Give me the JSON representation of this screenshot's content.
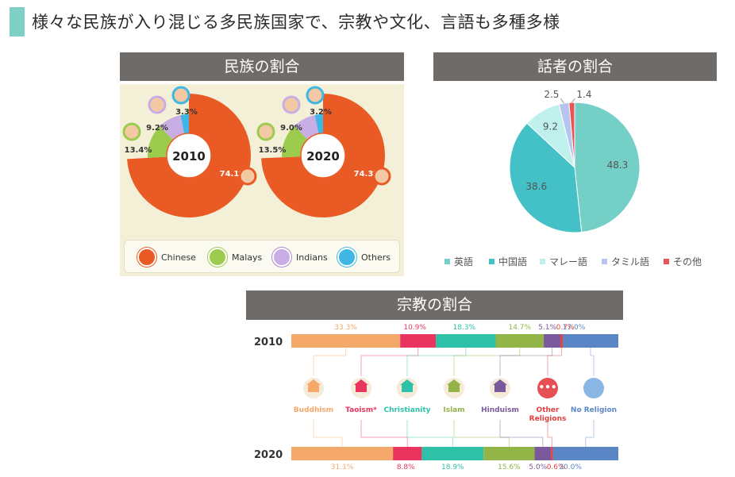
{
  "page": {
    "title": "様々な民族が入り混じる多民族国家で、宗教や文化、言語も多種多様"
  },
  "colors": {
    "accent": "#7ecfc6",
    "header_bg": "#6f6b69",
    "chinese": "#ea5a24",
    "malays": "#9ccb4e",
    "indians": "#c9aee6",
    "others": "#3fb7e4"
  },
  "ethnic": {
    "header": "民族の割合",
    "legend": [
      {
        "label": "Chinese",
        "color": "#ea5a24"
      },
      {
        "label": "Malays",
        "color": "#9ccb4e"
      },
      {
        "label": "Indians",
        "color": "#c9aee6"
      },
      {
        "label": "Others",
        "color": "#3fb7e4"
      }
    ]
  },
  "speakers": {
    "header": "話者の割合"
  },
  "religion": {
    "header": "宗教の割合",
    "icons": [
      "temple-icon",
      "pagoda-icon",
      "church-icon",
      "mosque-icon",
      "hindu-temple-icon",
      "more-icon",
      "none-icon"
    ]
  },
  "chart_data": [
    {
      "type": "pie",
      "title": "民族の割合",
      "center_label": "2010",
      "categories": [
        "Chinese",
        "Malays",
        "Indians",
        "Others"
      ],
      "values": [
        74.1,
        13.4,
        9.2,
        3.3
      ],
      "labels": [
        "74.1%",
        "13.4%",
        "9.2%",
        "3.3%"
      ],
      "colors": [
        "#ea5a24",
        "#9ccb4e",
        "#c9aee6",
        "#3fb7e4"
      ]
    },
    {
      "type": "pie",
      "title": "民族の割合",
      "center_label": "2020",
      "categories": [
        "Chinese",
        "Malays",
        "Indians",
        "Others"
      ],
      "values": [
        74.3,
        13.5,
        9.0,
        3.2
      ],
      "labels": [
        "74.3%",
        "13.5%",
        "9.0%",
        "3.2%"
      ],
      "colors": [
        "#ea5a24",
        "#9ccb4e",
        "#c9aee6",
        "#3fb7e4"
      ]
    },
    {
      "type": "pie",
      "title": "話者の割合",
      "categories": [
        "英語",
        "中国語",
        "マレー語",
        "タミル語",
        "その他"
      ],
      "values": [
        48.3,
        38.6,
        9.2,
        2.5,
        1.4
      ],
      "labels": [
        "48.3",
        "38.6",
        "9.2",
        "2.5",
        "1.4"
      ],
      "colors": [
        "#74d0c6",
        "#43c1c6",
        "#bff0ec",
        "#b9c3ef",
        "#e65757"
      ],
      "legend": "bottom"
    },
    {
      "type": "bar",
      "title": "宗教の割合",
      "stacked": true,
      "orientation": "horizontal",
      "categories": [
        "2010",
        "2020"
      ],
      "series": [
        {
          "name": "Buddhism",
          "color": "#f4a869",
          "values": [
            33.3,
            31.1
          ],
          "labels": [
            "33.3%",
            "31.1%"
          ]
        },
        {
          "name": "Taoism*",
          "color": "#e8345e",
          "values": [
            10.9,
            8.8
          ],
          "labels": [
            "10.9%",
            "8.8%"
          ]
        },
        {
          "name": "Christianity",
          "color": "#2fc0a8",
          "values": [
            18.3,
            18.9
          ],
          "labels": [
            "18.3%",
            "18.9%"
          ]
        },
        {
          "name": "Islam",
          "color": "#93b446",
          "values": [
            14.7,
            15.6
          ],
          "labels": [
            "14.7%",
            "15.6%"
          ]
        },
        {
          "name": "Hinduism",
          "color": "#7a5a9c",
          "values": [
            5.1,
            5.0
          ],
          "labels": [
            "5.1%",
            "5.0%"
          ]
        },
        {
          "name": "Other Religions",
          "color": "#e43e3e",
          "values": [
            0.7,
            0.6
          ],
          "labels": [
            "0.7%",
            "0.6%"
          ]
        },
        {
          "name": "No Religion",
          "color": "#5b86c6",
          "values": [
            17.0,
            20.0
          ],
          "labels": [
            "17.0%",
            "20.0%"
          ]
        }
      ]
    }
  ]
}
